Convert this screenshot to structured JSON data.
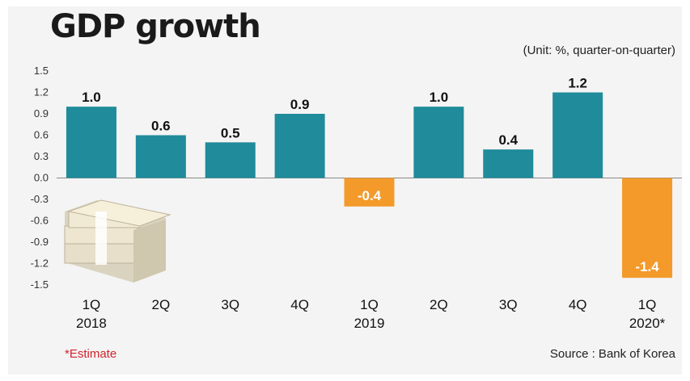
{
  "header": {
    "title": "GDP growth",
    "unit": "(Unit: %, quarter-on-quarter)"
  },
  "footer": {
    "note": "*Estimate",
    "source": "Source : Bank of Korea"
  },
  "colors": {
    "positive": "#1f8b9b",
    "negative": "#f39a2b",
    "zero_line": "#888888",
    "note": "#d2232a"
  },
  "chart_data": {
    "type": "bar",
    "title": "GDP growth",
    "ylabel": "(Unit: %, quarter-on-quarter)",
    "categories": [
      "1Q 2018",
      "2Q",
      "3Q",
      "4Q",
      "1Q 2019",
      "2Q",
      "3Q",
      "4Q",
      "1Q 2020*"
    ],
    "category_lines": [
      [
        "1Q",
        "2018"
      ],
      [
        "2Q"
      ],
      [
        "3Q"
      ],
      [
        "4Q"
      ],
      [
        "1Q",
        "2019"
      ],
      [
        "2Q"
      ],
      [
        "3Q"
      ],
      [
        "4Q"
      ],
      [
        "1Q",
        "2020*"
      ]
    ],
    "values": [
      1.0,
      0.6,
      0.5,
      0.9,
      -0.4,
      1.0,
      0.4,
      1.2,
      -1.4
    ],
    "value_labels": [
      "1.0",
      "0.6",
      "0.5",
      "0.9",
      "-0.4",
      "1.0",
      "0.4",
      "1.2",
      "-1.4"
    ],
    "yticks": [
      "1.5",
      "1.2",
      "0.9",
      "0.6",
      "0.3",
      "0.0",
      "-0.3",
      "-0.6",
      "-0.9",
      "-1.2",
      "-1.5"
    ],
    "ylim": [
      -1.5,
      1.5
    ],
    "grid": false,
    "legend": "none"
  }
}
